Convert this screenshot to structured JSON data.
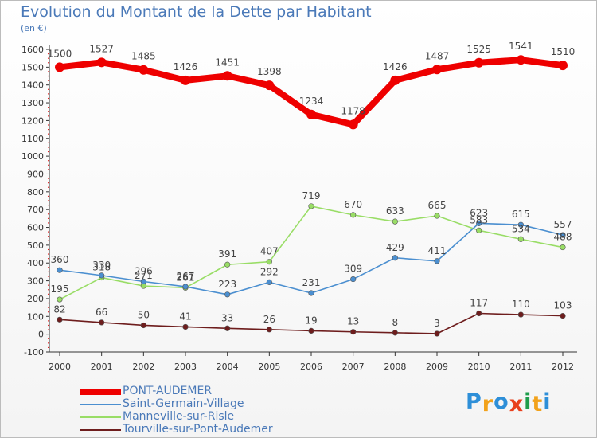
{
  "title": "Evolution du Montant de la Dette par Habitant",
  "subtitle": "(en €)",
  "brand": "Proxiti",
  "chart_data": {
    "type": "line",
    "title": "Evolution du Montant de la Dette par Habitant",
    "subtitle": "(en €)",
    "categories": [
      "2000",
      "2001",
      "2002",
      "2003",
      "2004",
      "2005",
      "2006",
      "2007",
      "2008",
      "2009",
      "2010",
      "2011",
      "2012"
    ],
    "ylim": [
      -100,
      1600
    ],
    "yticks": [
      -100,
      0,
      100,
      200,
      300,
      400,
      500,
      600,
      700,
      800,
      900,
      1000,
      1100,
      1200,
      1300,
      1400,
      1500,
      1600
    ],
    "grid": false,
    "legend_position": "bottom-left",
    "series": [
      {
        "name": "PONT-AUDEMER",
        "color": "#ee0000",
        "values": [
          1500,
          1527,
          1485,
          1426,
          1451,
          1398,
          1234,
          1178,
          1426,
          1487,
          1525,
          1541,
          1510
        ]
      },
      {
        "name": "Saint-Germain-Village",
        "color": "#4b8fd0",
        "values": [
          360,
          330,
          296,
          267,
          223,
          292,
          231,
          309,
          429,
          411,
          623,
          615,
          557
        ]
      },
      {
        "name": "Manneville-sur-Risle",
        "color": "#99dd66",
        "values": [
          195,
          318,
          271,
          261,
          391,
          407,
          719,
          670,
          633,
          665,
          583,
          534,
          488
        ]
      },
      {
        "name": "Tourville-sur-Pont-Audemer",
        "color": "#6e1d1d",
        "values": [
          82,
          66,
          50,
          41,
          33,
          26,
          19,
          13,
          8,
          3,
          117,
          110,
          103
        ]
      }
    ]
  }
}
